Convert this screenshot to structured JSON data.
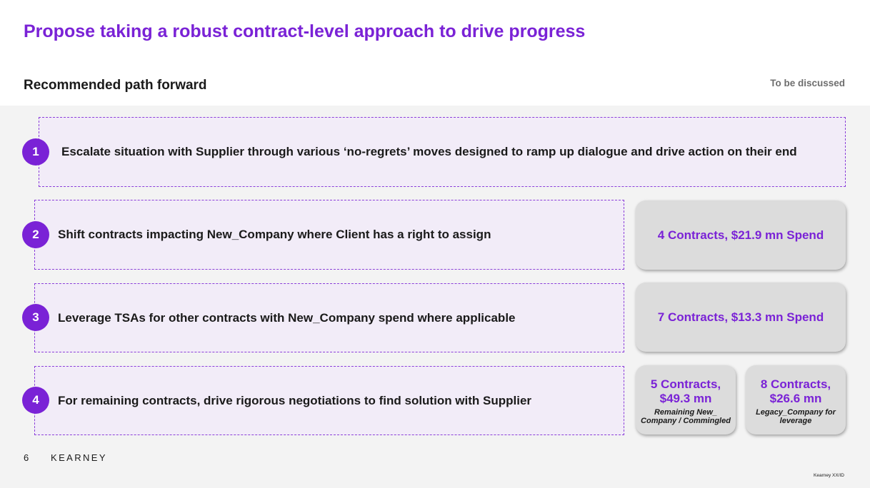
{
  "header": {
    "title": "Propose taking a robust contract-level approach to drive progress",
    "subtitle": "Recommended path forward",
    "tag": "To be discussed"
  },
  "steps": [
    {
      "number": "1",
      "text": "Escalate situation with Supplier through various ‘no-regrets’ moves designed to ramp up dialogue and drive action on their end"
    },
    {
      "number": "2",
      "text": "Shift contracts impacting New_Company where Client has a right to assign"
    },
    {
      "number": "3",
      "text": "Leverage TSAs for other contracts with New_Company spend where applicable"
    },
    {
      "number": "4",
      "text": "For remaining contracts, drive rigorous negotiations to find solution with Supplier"
    }
  ],
  "cards": {
    "step2": {
      "label": "4 Contracts, $21.9 mn Spend"
    },
    "step3": {
      "label": "7 Contracts, $13.3 mn Spend"
    },
    "step4a": {
      "line1": "5 Contracts,",
      "line2": "$49.3 mn",
      "note_line1": "Remaining New_",
      "note_line2": "Company / Commingled"
    },
    "step4b": {
      "line1": "8 Contracts,",
      "line2": "$26.6 mn",
      "note_line1": "Legacy_Company for",
      "note_line2": "leverage"
    }
  },
  "footer": {
    "page_number": "6",
    "brand": "KEARNEY",
    "code": "Kearney XX/ID"
  },
  "colors": {
    "accent": "#7a22d6",
    "step_fill": "#f2ecf8",
    "card_fill": "#dcdcdc",
    "panel": "#f3f3f3"
  }
}
